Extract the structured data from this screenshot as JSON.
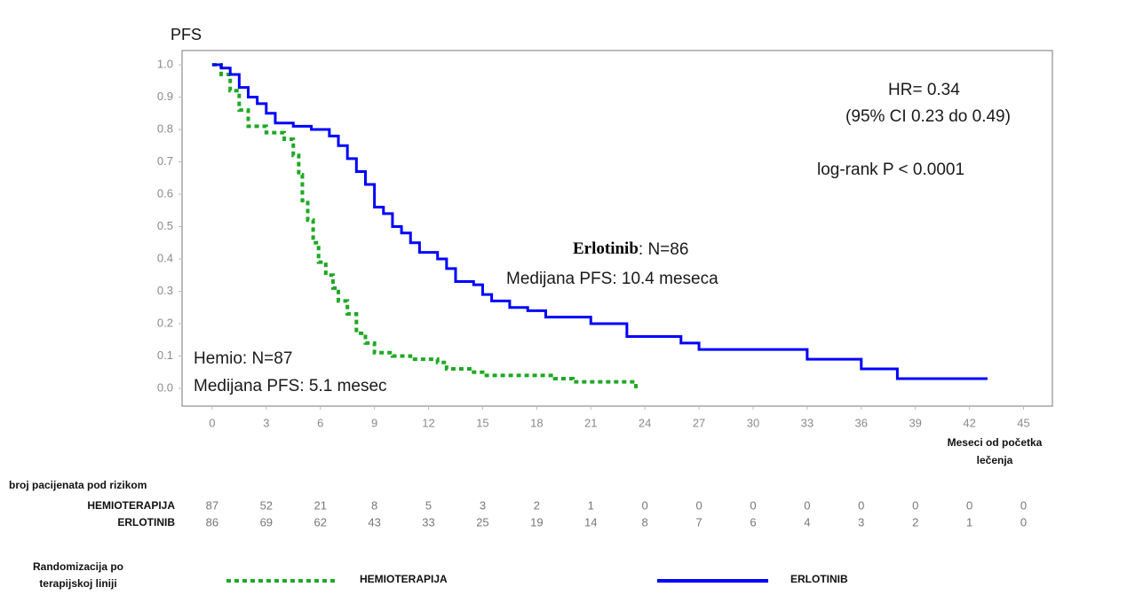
{
  "chart_data": {
    "type": "km",
    "y_title": "PFS",
    "xlim": [
      -1.67,
      46.6
    ],
    "ylim": [
      -0.055,
      1.044
    ],
    "xticks": [
      0,
      3,
      6,
      9,
      12,
      15,
      18,
      21,
      24,
      27,
      30,
      33,
      36,
      39,
      42,
      45
    ],
    "yticks": [
      {
        "value": 1.0,
        "label": "1.0"
      },
      {
        "value": 0.9,
        "label": "0.9"
      },
      {
        "value": 0.8,
        "label": "0.8"
      },
      {
        "value": 0.7,
        "label": "0.7"
      },
      {
        "value": 0.6,
        "label": "0.6"
      },
      {
        "value": 0.5,
        "label": "0.5"
      },
      {
        "value": 0.4,
        "label": "0.4"
      },
      {
        "value": 0.3,
        "label": "0.3"
      },
      {
        "value": 0.2,
        "label": "0.2"
      },
      {
        "value": 0.1,
        "label": "0.1"
      },
      {
        "value": 0.0,
        "label": "0.0"
      }
    ],
    "x_title": [
      "Meseci od početka",
      "lečenja"
    ],
    "series": [
      {
        "name": "HEMIOTERAPIJA",
        "color": "#1fa824",
        "dashed": true,
        "x": [
          0,
          0.5,
          1,
          1.5,
          2,
          3,
          4,
          4.5,
          4.8,
          5,
          5.3,
          5.6,
          5.9,
          6.3,
          6.7,
          7,
          7.5,
          8,
          8.5,
          9,
          10,
          11,
          12.5,
          13,
          14.5,
          15,
          19,
          20,
          23,
          23.5
        ],
        "values": [
          1.0,
          0.97,
          0.92,
          0.86,
          0.81,
          0.79,
          0.77,
          0.72,
          0.66,
          0.58,
          0.52,
          0.45,
          0.39,
          0.35,
          0.31,
          0.27,
          0.23,
          0.17,
          0.14,
          0.11,
          0.1,
          0.09,
          0.08,
          0.06,
          0.05,
          0.04,
          0.03,
          0.02,
          0.02,
          0.0
        ]
      },
      {
        "name": "ERLOTINIB",
        "color": "#0000ff",
        "dashed": false,
        "x": [
          0,
          0.5,
          1,
          1.5,
          2,
          2.5,
          3,
          3.5,
          4.5,
          5.5,
          6.5,
          7,
          7.5,
          8,
          8.5,
          9,
          9.5,
          10,
          10.5,
          11,
          11.5,
          12.5,
          13,
          13.5,
          14.5,
          15,
          15.5,
          16.5,
          17.5,
          18.5,
          21,
          23,
          26,
          27,
          33,
          36,
          38,
          43
        ],
        "values": [
          1.0,
          0.99,
          0.97,
          0.93,
          0.9,
          0.88,
          0.85,
          0.82,
          0.81,
          0.8,
          0.78,
          0.75,
          0.71,
          0.67,
          0.63,
          0.56,
          0.54,
          0.5,
          0.48,
          0.45,
          0.42,
          0.4,
          0.37,
          0.33,
          0.32,
          0.29,
          0.27,
          0.25,
          0.24,
          0.22,
          0.2,
          0.16,
          0.14,
          0.12,
          0.09,
          0.06,
          0.03,
          0.03
        ]
      }
    ],
    "annotations": {
      "hr": "HR= 0.34",
      "ci": "(95% CI 0.23 do 0.49)",
      "logrank": "log-rank P < 0.0001",
      "erl_name": "Erlotinib",
      "erl_n": ": N=86",
      "erl_median": "Medijana PFS: 10.4 meseca",
      "hem_n": "Hemio: N=87",
      "hem_median": "Medijana PFS: 5.1 mesec"
    },
    "risk_table": {
      "title": "broj pacijenata pod rizikom",
      "rows": [
        {
          "label": "HEMIOTERAPIJA",
          "values": [
            87,
            52,
            21,
            8,
            5,
            3,
            2,
            1,
            0,
            0,
            0,
            0,
            0,
            0,
            0,
            0
          ]
        },
        {
          "label": "ERLOTINIB",
          "values": [
            86,
            69,
            62,
            43,
            33,
            25,
            19,
            14,
            8,
            7,
            6,
            4,
            3,
            2,
            1,
            0
          ]
        }
      ]
    },
    "legend_title": [
      "Randomizacija po",
      "terapijskoj liniji"
    ]
  }
}
